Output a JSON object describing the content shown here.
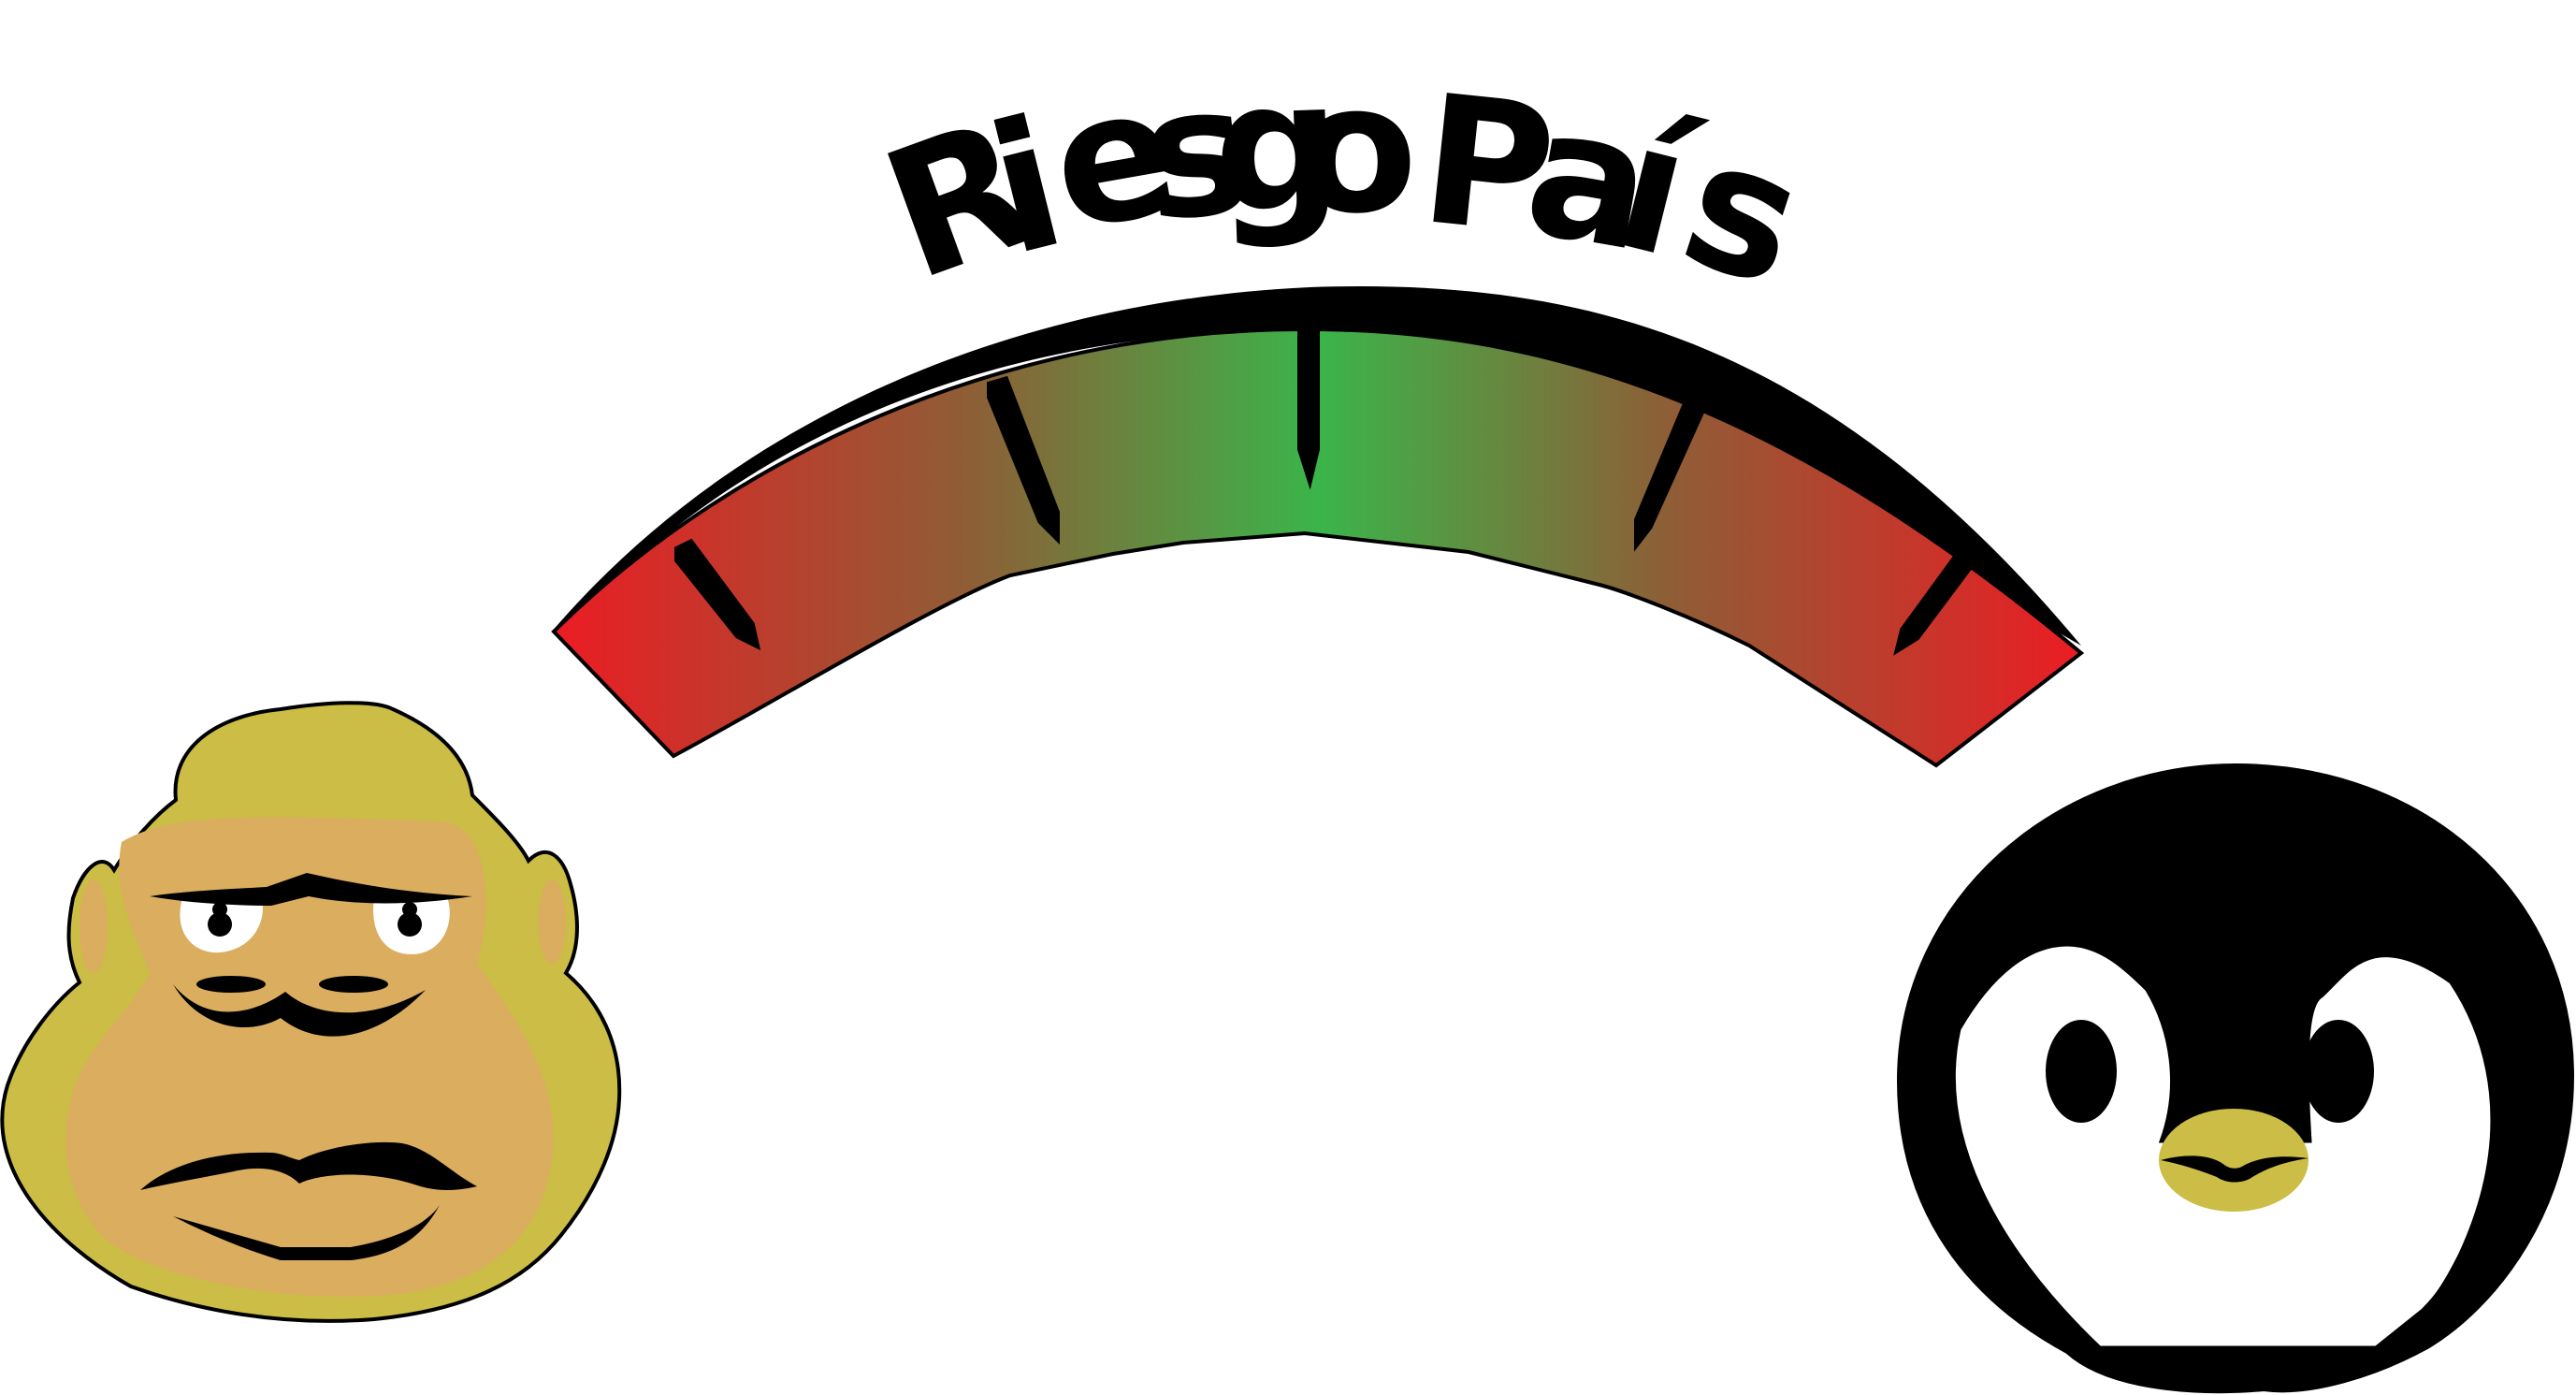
{
  "title": {
    "text": "Riesgo País",
    "letters": [
      "R",
      "i",
      "e",
      "s",
      "g",
      "o",
      "P",
      "a",
      "í",
      "s"
    ]
  },
  "gauge": {
    "colors": {
      "low_risk": "#3ab54a",
      "high_risk": "#ec1c24",
      "mid": "#7b7a3e"
    },
    "tick_count": 5
  },
  "characters": {
    "left": {
      "icon": "gorilla-face-icon",
      "skin": "#cbbd45",
      "face": "#dbad5f"
    },
    "right": {
      "icon": "penguin-face-icon",
      "body": "#000000",
      "beak": "#cbbd45"
    }
  }
}
